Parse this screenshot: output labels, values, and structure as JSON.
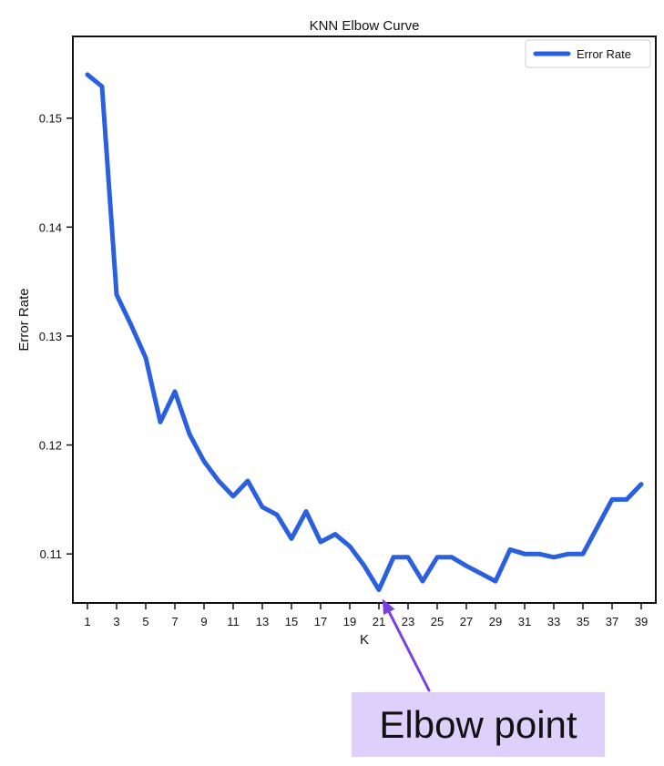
{
  "chart_data": {
    "type": "line",
    "title": "KNN Elbow Curve",
    "xlabel": "K",
    "ylabel": "Error Rate",
    "xlim": [
      0,
      40
    ],
    "ylim": [
      0.1055,
      0.1575
    ],
    "xticks": [
      1,
      3,
      5,
      7,
      9,
      11,
      13,
      15,
      17,
      19,
      21,
      23,
      25,
      27,
      29,
      31,
      33,
      35,
      37,
      39
    ],
    "yticks": [
      0.11,
      0.12,
      0.13,
      0.14,
      0.15
    ],
    "ytick_labels": [
      "0.11",
      "0.12",
      "0.13",
      "0.14",
      "0.15"
    ],
    "legend_position": "top-right",
    "grid": false,
    "series": [
      {
        "name": "Error Rate",
        "color": "#2a5fe0",
        "x": [
          1,
          2,
          3,
          4,
          5,
          6,
          7,
          8,
          9,
          10,
          11,
          12,
          13,
          14,
          15,
          16,
          17,
          18,
          19,
          20,
          21,
          22,
          23,
          24,
          25,
          26,
          27,
          28,
          29,
          30,
          31,
          32,
          33,
          34,
          35,
          36,
          37,
          38,
          39
        ],
        "values": [
          0.154,
          0.1529,
          0.1338,
          0.131,
          0.128,
          0.1221,
          0.1249,
          0.121,
          0.1185,
          0.1167,
          0.1153,
          0.1167,
          0.1143,
          0.1136,
          0.1114,
          0.1139,
          0.1111,
          0.1118,
          0.1107,
          0.1089,
          0.1067,
          0.1097,
          0.1097,
          0.1075,
          0.1097,
          0.1097,
          0.1089,
          0.1082,
          0.1075,
          0.1104,
          0.11,
          0.11,
          0.1097,
          0.11,
          0.11,
          0.1125,
          0.115,
          0.115,
          0.1164
        ]
      }
    ],
    "annotation": {
      "text": "Elbow point",
      "target_x": 21,
      "target_y": 0.1067,
      "arrow_color": "#7a3fe0",
      "box_color": "#ddd0fb"
    }
  }
}
